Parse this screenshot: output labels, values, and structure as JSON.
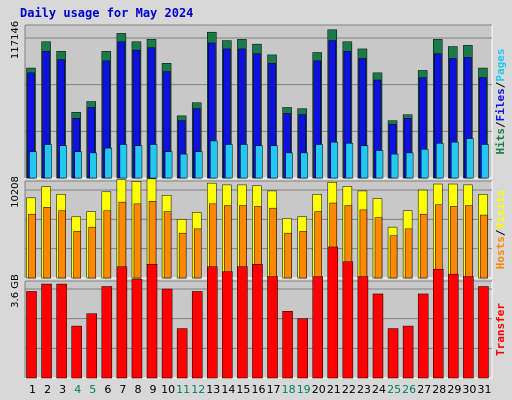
{
  "title": "Daily usage for May 2024",
  "colors": {
    "hits": "#1a7a4a",
    "files": "#1010e0",
    "pages": "#22c8f0",
    "visits": "#ffff00",
    "hosts": "#ff8800",
    "transfer": "#ff0000",
    "weekend": "#008060",
    "weekday": "#000000"
  },
  "chart_data": [
    {
      "type": "bar",
      "panel": "top",
      "ylabel_max": "117146",
      "ymax": 117146,
      "right_label_parts": [
        {
          "text": "Hits",
          "color": "#1a7a4a"
        },
        {
          "text": "/",
          "color": "#000000"
        },
        {
          "text": "Files",
          "color": "#1010e0"
        },
        {
          "text": "/",
          "color": "#000000"
        },
        {
          "text": "Pages",
          "color": "#22c8f0"
        }
      ],
      "series": [
        {
          "name": "Hits",
          "values": [
            92000,
            114000,
            106000,
            55000,
            64000,
            106000,
            121000,
            114000,
            116000,
            96000,
            52000,
            63000,
            122000,
            115000,
            116000,
            112000,
            103000,
            59000,
            58000,
            105000,
            124000,
            114000,
            108000,
            88000,
            48000,
            53000,
            90000,
            116000,
            110000,
            111000,
            92000
          ]
        },
        {
          "name": "Files",
          "values": [
            88000,
            106000,
            99000,
            50000,
            59000,
            98000,
            114000,
            107000,
            109000,
            89000,
            48000,
            58000,
            113000,
            108000,
            108000,
            104000,
            96000,
            54000,
            53000,
            98000,
            115000,
            106000,
            100000,
            82000,
            45000,
            50000,
            84000,
            104000,
            100000,
            101000,
            84000
          ]
        },
        {
          "name": "Pages",
          "values": [
            22000,
            28000,
            27000,
            22000,
            21000,
            25000,
            28000,
            27000,
            28000,
            22000,
            20000,
            22000,
            31000,
            28000,
            28000,
            27000,
            27000,
            21000,
            21000,
            28000,
            30000,
            29000,
            27000,
            23000,
            20000,
            21000,
            24000,
            29000,
            30000,
            33000,
            28000
          ]
        }
      ]
    },
    {
      "type": "bar",
      "panel": "middle",
      "ylabel_max": "10208",
      "ymax": 10208,
      "right_label_parts": [
        {
          "text": "Hosts",
          "color": "#ff8800"
        },
        {
          "text": "/",
          "color": "#000000"
        },
        {
          "text": "Visits",
          "color": "#ffff00"
        }
      ],
      "series": [
        {
          "name": "Visits",
          "values": [
            9300,
            10600,
            9700,
            7100,
            7700,
            10000,
            11400,
            11200,
            11500,
            9600,
            6800,
            7600,
            11000,
            10800,
            10800,
            10700,
            10100,
            6900,
            7100,
            9700,
            11100,
            10600,
            10100,
            9200,
            5900,
            7800,
            10200,
            10900,
            10900,
            10800,
            9700
          ]
        },
        {
          "name": "Hosts",
          "values": [
            7400,
            8200,
            7800,
            5400,
            5900,
            7800,
            8800,
            8600,
            8900,
            7700,
            5200,
            5700,
            8600,
            8400,
            8400,
            8300,
            8100,
            5200,
            5400,
            7700,
            8700,
            8400,
            7900,
            7000,
            4900,
            5700,
            7400,
            8500,
            8300,
            8400,
            7300
          ]
        }
      ]
    },
    {
      "type": "bar",
      "panel": "bottom",
      "ylabel_max": "3.6 GB",
      "ymax": 3.6,
      "right_label_parts": [
        {
          "text": "Transfer",
          "color": "#ff0000"
        }
      ],
      "series": [
        {
          "name": "Transfer",
          "values": [
            3.5,
            3.8,
            3.8,
            2.1,
            2.6,
            3.7,
            4.5,
            4.0,
            4.6,
            3.6,
            2.0,
            3.5,
            4.5,
            4.3,
            4.5,
            4.6,
            4.1,
            2.7,
            2.4,
            4.1,
            5.3,
            4.7,
            4.1,
            3.4,
            2.0,
            2.1,
            3.4,
            4.4,
            4.2,
            4.1,
            3.7
          ]
        }
      ]
    }
  ],
  "days": [
    "1",
    "2",
    "3",
    "4",
    "5",
    "6",
    "7",
    "8",
    "9",
    "10",
    "11",
    "12",
    "13",
    "14",
    "15",
    "16",
    "17",
    "18",
    "19",
    "20",
    "21",
    "22",
    "23",
    "24",
    "25",
    "26",
    "27",
    "28",
    "29",
    "30",
    "31"
  ],
  "weekend_days": [
    4,
    5,
    11,
    12,
    18,
    19,
    25,
    26
  ]
}
